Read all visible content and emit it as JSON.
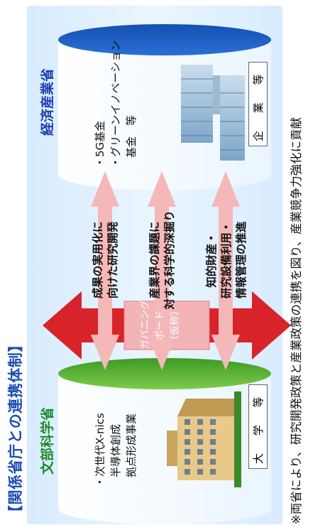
{
  "title": "【関係省庁との連携体制】",
  "mext": {
    "name": "文部科学省",
    "bullet_lines": [
      "・次世代X-nics",
      "半導体創成",
      "拠点形成事業"
    ],
    "entity_label": "大 学 等"
  },
  "meti": {
    "name": "経済産業省",
    "bullet_lines": [
      "・5G基金",
      "・グリーンイノベーション",
      "基金　等"
    ],
    "entity_label": "企 業 等"
  },
  "governing_board": {
    "lines": [
      "ガバニング",
      "ボード",
      "（仮称）"
    ]
  },
  "collaboration": {
    "item1_lines": [
      "成果の実用化に",
      "向けた研究開発"
    ],
    "item2_lines": [
      "産業界の課題に",
      "対する科学的深掘り"
    ],
    "item3_lines": [
      "知的財産・",
      "研究設備利用・",
      "情報管理の推進"
    ]
  },
  "footnote": "※両省により、研究開発政策と産業政策の連携を図り、産業競争力強化に貢献",
  "colors": {
    "title": "#1f4eb4",
    "mext": "#1c8a2a",
    "meti": "#1c3db4",
    "red_arrow": "#d9232a",
    "pink_arrow": "#f5b8b8",
    "board_bg": "#f3b4b8"
  }
}
